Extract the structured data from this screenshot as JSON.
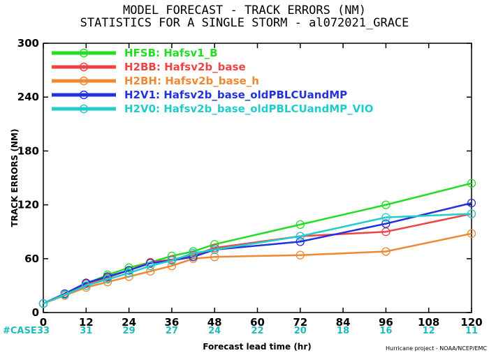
{
  "chart_data": {
    "type": "line",
    "title": "MODEL FORECAST - TRACK ERRORS (NM)",
    "subtitle": "STATISTICS FOR A SINGLE STORM - al072021_GRACE",
    "xlabel": "Forecast lead time (hr)",
    "ylabel": "TRACK ERRORS (NM)",
    "xlim": [
      0,
      120
    ],
    "ylim": [
      0,
      300
    ],
    "x_ticks": [
      "0",
      "12",
      "24",
      "36",
      "48",
      "60",
      "72",
      "84",
      "96",
      "108",
      "120"
    ],
    "y_ticks": [
      "0",
      "60",
      "120",
      "180",
      "240",
      "300"
    ],
    "y_tick_values": [
      0,
      60,
      120,
      180,
      240,
      300
    ],
    "legend_position": "top-left",
    "case_label": "#CASE",
    "case_counts": [
      "33",
      "31",
      "29",
      "27",
      "24",
      "22",
      "20",
      "18",
      "16",
      "12",
      "11"
    ],
    "credit": "Hurricane project - NOAA/NCEP/EMC",
    "series": [
      {
        "name": "HFSB: Hafsv1_B",
        "color": "#22dd22",
        "x": [
          0,
          6,
          12,
          18,
          24,
          30,
          36,
          42,
          48,
          72,
          96,
          120
        ],
        "y": [
          10,
          21,
          32,
          42,
          50,
          56,
          63,
          68,
          76,
          98,
          120,
          144
        ]
      },
      {
        "name": "H2BB: Hafsv2b_base",
        "color": "#ee4444",
        "x": [
          0,
          6,
          12,
          18,
          24,
          30,
          36,
          42,
          48,
          72,
          96,
          120
        ],
        "y": [
          10,
          21,
          32,
          39,
          47,
          56,
          59,
          64,
          72,
          85,
          90,
          110
        ]
      },
      {
        "name": "H2BH: Hafsv2b_base_h",
        "color": "#ee8833",
        "x": [
          0,
          6,
          12,
          18,
          24,
          30,
          36,
          42,
          48,
          72,
          96,
          120
        ],
        "y": [
          10,
          19,
          28,
          34,
          40,
          46,
          52,
          60,
          62,
          64,
          68,
          88
        ]
      },
      {
        "name": "H2V1: Hafsv2b_base_oldPBLCUandMP",
        "color": "#2233dd",
        "x": [
          0,
          6,
          12,
          18,
          24,
          30,
          36,
          42,
          48,
          72,
          96,
          120
        ],
        "y": [
          10,
          21,
          33,
          40,
          47,
          55,
          58,
          62,
          70,
          79,
          99,
          122
        ]
      },
      {
        "name": "H2V0: Hafsv2b_base_oldPBLCUandMP_VIO",
        "color": "#22cccc",
        "x": [
          0,
          6,
          12,
          18,
          24,
          30,
          36,
          42,
          48,
          72,
          96,
          120
        ],
        "y": [
          10,
          20,
          30,
          37,
          44,
          52,
          58,
          66,
          70,
          85,
          106,
          110
        ]
      }
    ]
  }
}
